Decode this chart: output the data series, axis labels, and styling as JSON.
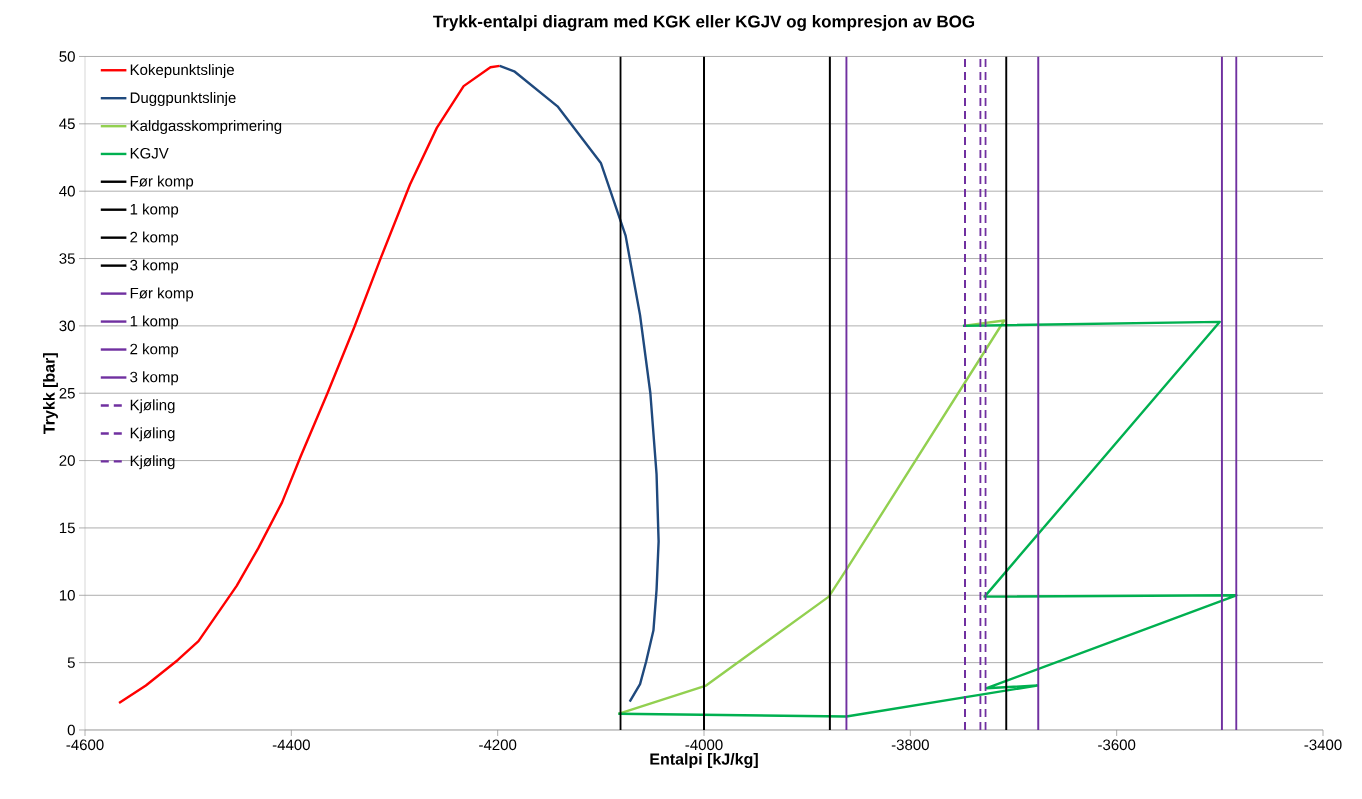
{
  "chart_data": {
    "type": "line",
    "title": "Trykk-entalpi diagram med  KGK eller KGJV og kompresjon av BOG",
    "xlabel": "Entalpi [kJ/kg]",
    "ylabel": "Trykk [bar]",
    "xlim": [
      -4600,
      -3400
    ],
    "xticks": [
      -4600,
      -4400,
      -4200,
      -4000,
      -3800,
      -3600,
      -3400
    ],
    "ylim": [
      0,
      50
    ],
    "yticks": [
      0,
      5,
      10,
      15,
      20,
      25,
      30,
      35,
      40,
      45,
      50
    ],
    "grid": "y",
    "legend": "top left",
    "series": [
      {
        "name": "Kokepunktslinje",
        "color": "#ff0000",
        "line_style": "solid",
        "x": [
          -4567,
          -4541,
          -4510,
          -4490,
          -4453,
          -4432,
          -4409,
          -4391,
          -4365,
          -4339,
          -4313,
          -4285,
          -4259,
          -4233,
          -4207,
          -4198
        ],
        "values": [
          2.0,
          3.3,
          5.2,
          6.6,
          10.7,
          13.5,
          16.9,
          20.3,
          25.0,
          29.9,
          35.1,
          40.5,
          44.7,
          47.8,
          49.2,
          49.3
        ]
      },
      {
        "name": "Duggpunktslinje",
        "color": "#1f497d",
        "line_style": "solid",
        "x": [
          -4198,
          -4184,
          -4142,
          -4100,
          -4076,
          -4062,
          -4052,
          -4046,
          -4044,
          -4046,
          -4049,
          -4056,
          -4062,
          -4072
        ],
        "values": [
          49.3,
          48.9,
          46.3,
          42.1,
          36.7,
          30.8,
          25.0,
          19.0,
          14.0,
          10.4,
          7.4,
          5.1,
          3.4,
          2.1
        ]
      },
      {
        "name": "Kaldgasskomprimering",
        "color": "#92d050",
        "line_style": "solid",
        "x": [
          -4083,
          -3998,
          -3879,
          -3862,
          -3709,
          -3749
        ],
        "values": [
          1.2,
          3.3,
          9.9,
          11.9,
          30.4,
          30.0
        ]
      },
      {
        "name": "KGJV",
        "color": "#00b050",
        "line_style": "solid",
        "x": [
          -4083,
          -3862,
          -3677,
          -3726,
          -3484,
          -3728,
          -3500,
          -3749
        ],
        "values": [
          1.2,
          1.0,
          3.3,
          3.1,
          10.0,
          9.9,
          30.3,
          30.0
        ]
      },
      {
        "name": "Før komp",
        "color": "#000000",
        "line_style": "solid",
        "x": [
          -4081,
          -4081
        ],
        "values": [
          0,
          50
        ]
      },
      {
        "name": "1 komp",
        "color": "#000000",
        "line_style": "solid",
        "x": [
          -4000,
          -4000
        ],
        "values": [
          0,
          50
        ]
      },
      {
        "name": "2 komp",
        "color": "#000000",
        "line_style": "solid",
        "x": [
          -3878,
          -3878
        ],
        "values": [
          0,
          50
        ]
      },
      {
        "name": "3 komp",
        "color": "#000000",
        "line_style": "solid",
        "x": [
          -3707,
          -3707
        ],
        "values": [
          0,
          50
        ]
      },
      {
        "name": "Før komp",
        "color": "#7030a0",
        "line_style": "solid",
        "x": [
          -3862,
          -3862
        ],
        "values": [
          0,
          50
        ]
      },
      {
        "name": "1 komp",
        "color": "#7030a0",
        "line_style": "solid",
        "x": [
          -3676,
          -3676
        ],
        "values": [
          0,
          50
        ]
      },
      {
        "name": "2 komp",
        "color": "#7030a0",
        "line_style": "solid",
        "x": [
          -3498,
          -3498
        ],
        "values": [
          0,
          50
        ]
      },
      {
        "name": "3 komp",
        "color": "#7030a0",
        "line_style": "solid",
        "x": [
          -3484,
          -3484
        ],
        "values": [
          0,
          50
        ]
      },
      {
        "name": "Kjøling",
        "color": "#7030a0",
        "line_style": "dashed",
        "x": [
          -3747,
          -3747
        ],
        "values": [
          0,
          50
        ]
      },
      {
        "name": "Kjøling",
        "color": "#7030a0",
        "line_style": "dashed",
        "x": [
          -3732,
          -3732
        ],
        "values": [
          0,
          50
        ]
      },
      {
        "name": "Kjøling",
        "color": "#7030a0",
        "line_style": "dashed",
        "x": [
          -3727,
          -3727
        ],
        "values": [
          0,
          50
        ]
      }
    ]
  }
}
